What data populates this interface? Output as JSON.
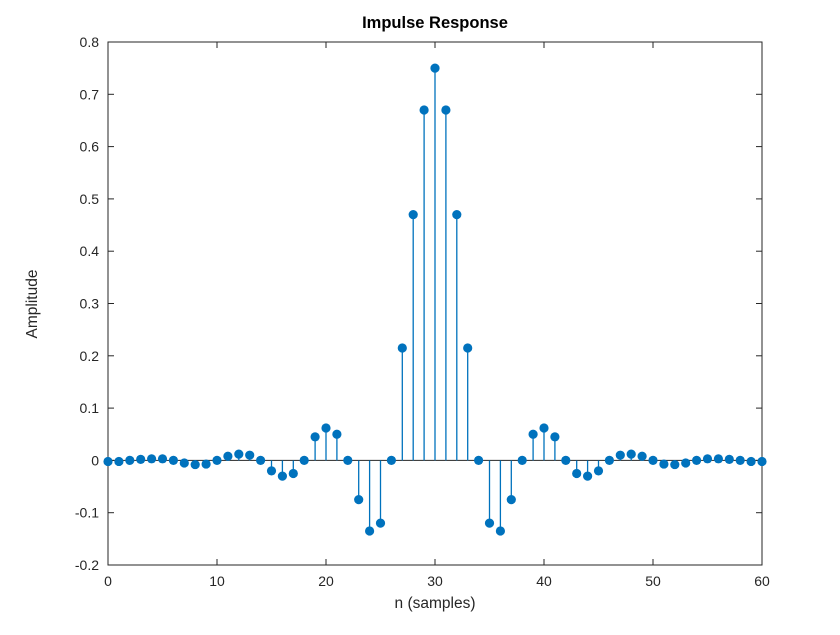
{
  "figure": {
    "background": "#ffffff"
  },
  "chart_data": {
    "type": "stem",
    "title": "Impulse Response",
    "xlabel": "n (samples)",
    "ylabel": "Amplitude",
    "xlim": [
      0,
      60
    ],
    "ylim": [
      -0.2,
      0.8
    ],
    "x_ticks": [
      0,
      10,
      20,
      30,
      40,
      50,
      60
    ],
    "x_tick_labels": [
      "0",
      "10",
      "20",
      "30",
      "40",
      "50",
      "60"
    ],
    "y_ticks": [
      -0.2,
      -0.1,
      0,
      0.1,
      0.2,
      0.3,
      0.4,
      0.5,
      0.6,
      0.7,
      0.8
    ],
    "y_tick_labels": [
      "-0.2",
      "-0.1",
      "0",
      "0.1",
      "0.2",
      "0.3",
      "0.4",
      "0.5",
      "0.6",
      "0.7",
      "0.8"
    ],
    "grid": false,
    "marker": "filled-circle",
    "series_color": "#0072BD",
    "axis_color": "#262626",
    "baseline_color": "#262626",
    "x": [
      0,
      1,
      2,
      3,
      4,
      5,
      6,
      7,
      8,
      9,
      10,
      11,
      12,
      13,
      14,
      15,
      16,
      17,
      18,
      19,
      20,
      21,
      22,
      23,
      24,
      25,
      26,
      27,
      28,
      29,
      30,
      31,
      32,
      33,
      34,
      35,
      36,
      37,
      38,
      39,
      40,
      41,
      42,
      43,
      44,
      45,
      46,
      47,
      48,
      49,
      50,
      51,
      52,
      53,
      54,
      55,
      56,
      57,
      58,
      59,
      60
    ],
    "y": [
      -0.002,
      -0.002,
      0,
      0.002,
      0.003,
      0.003,
      0,
      -0.005,
      -0.008,
      -0.007,
      0,
      0.008,
      0.012,
      0.01,
      0,
      -0.02,
      -0.03,
      -0.025,
      0,
      0.045,
      0.062,
      0.05,
      0,
      -0.075,
      -0.135,
      -0.12,
      0,
      0.215,
      0.47,
      0.67,
      0.75,
      0.67,
      0.47,
      0.215,
      0,
      -0.12,
      -0.135,
      -0.075,
      0,
      0.05,
      0.062,
      0.045,
      0,
      -0.025,
      -0.03,
      -0.02,
      0,
      0.01,
      0.012,
      0.008,
      0,
      -0.007,
      -0.008,
      -0.005,
      0,
      0.003,
      0.003,
      0.002,
      0,
      -0.002,
      -0.002
    ]
  }
}
